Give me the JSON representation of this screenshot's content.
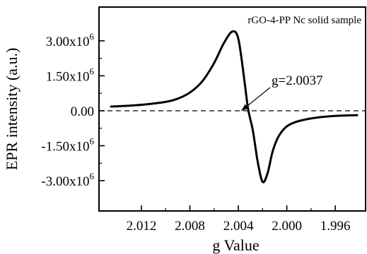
{
  "chart_data": {
    "type": "line",
    "title": "",
    "xlabel": "g Value",
    "ylabel": "EPR intensity (a.u.)",
    "x_reversed": true,
    "xlim": [
      2.0155,
      1.9935
    ],
    "ylim": [
      -4.3,
      4.45
    ],
    "x_ticks": [
      2.012,
      2.008,
      2.004,
      2.0,
      1.996
    ],
    "x_tick_labels": [
      "2.012",
      "2.008",
      "2.004",
      "2.000",
      "1.996"
    ],
    "y_ticks": [
      3.0,
      1.5,
      0.0,
      -1.5,
      -3.0
    ],
    "y_tick_labels_mantissa": [
      "3.00x10",
      "1.50x10",
      "0.00",
      "-1.50x10",
      "-3.00x10"
    ],
    "y_tick_labels_exponent": [
      "6",
      "6",
      "",
      "6",
      "6"
    ],
    "y_unit_multiplier": 1000000,
    "grid": false,
    "series": [
      {
        "x": [
          2.0145,
          2.013,
          2.0115,
          2.01,
          2.009,
          2.008,
          2.007,
          2.006,
          2.0052,
          2.0045,
          2.004,
          2.0035,
          2.0032,
          2.0028,
          2.0024,
          2.002,
          2.0016,
          2.0012,
          2.0008,
          2.0004,
          2.0,
          1.9996,
          1.999,
          1.998,
          1.997,
          1.996,
          1.995,
          1.9942
        ],
        "y": [
          0.18,
          0.22,
          0.28,
          0.38,
          0.52,
          0.78,
          1.25,
          2.05,
          2.9,
          3.4,
          3.08,
          1.3,
          0.08,
          -0.85,
          -2.2,
          -3.05,
          -2.7,
          -1.8,
          -1.22,
          -0.88,
          -0.67,
          -0.55,
          -0.44,
          -0.33,
          -0.26,
          -0.22,
          -0.2,
          -0.19
        ]
      }
    ],
    "reference_line": {
      "y": 0.0,
      "style": "dashed"
    },
    "annotations": [
      {
        "text": "rGO-4-PP Nc solid sample",
        "position": "top-right"
      },
      {
        "text": "g=2.0037",
        "arrow_to_x": 2.00375,
        "arrow_to_y": 0.0
      }
    ]
  }
}
